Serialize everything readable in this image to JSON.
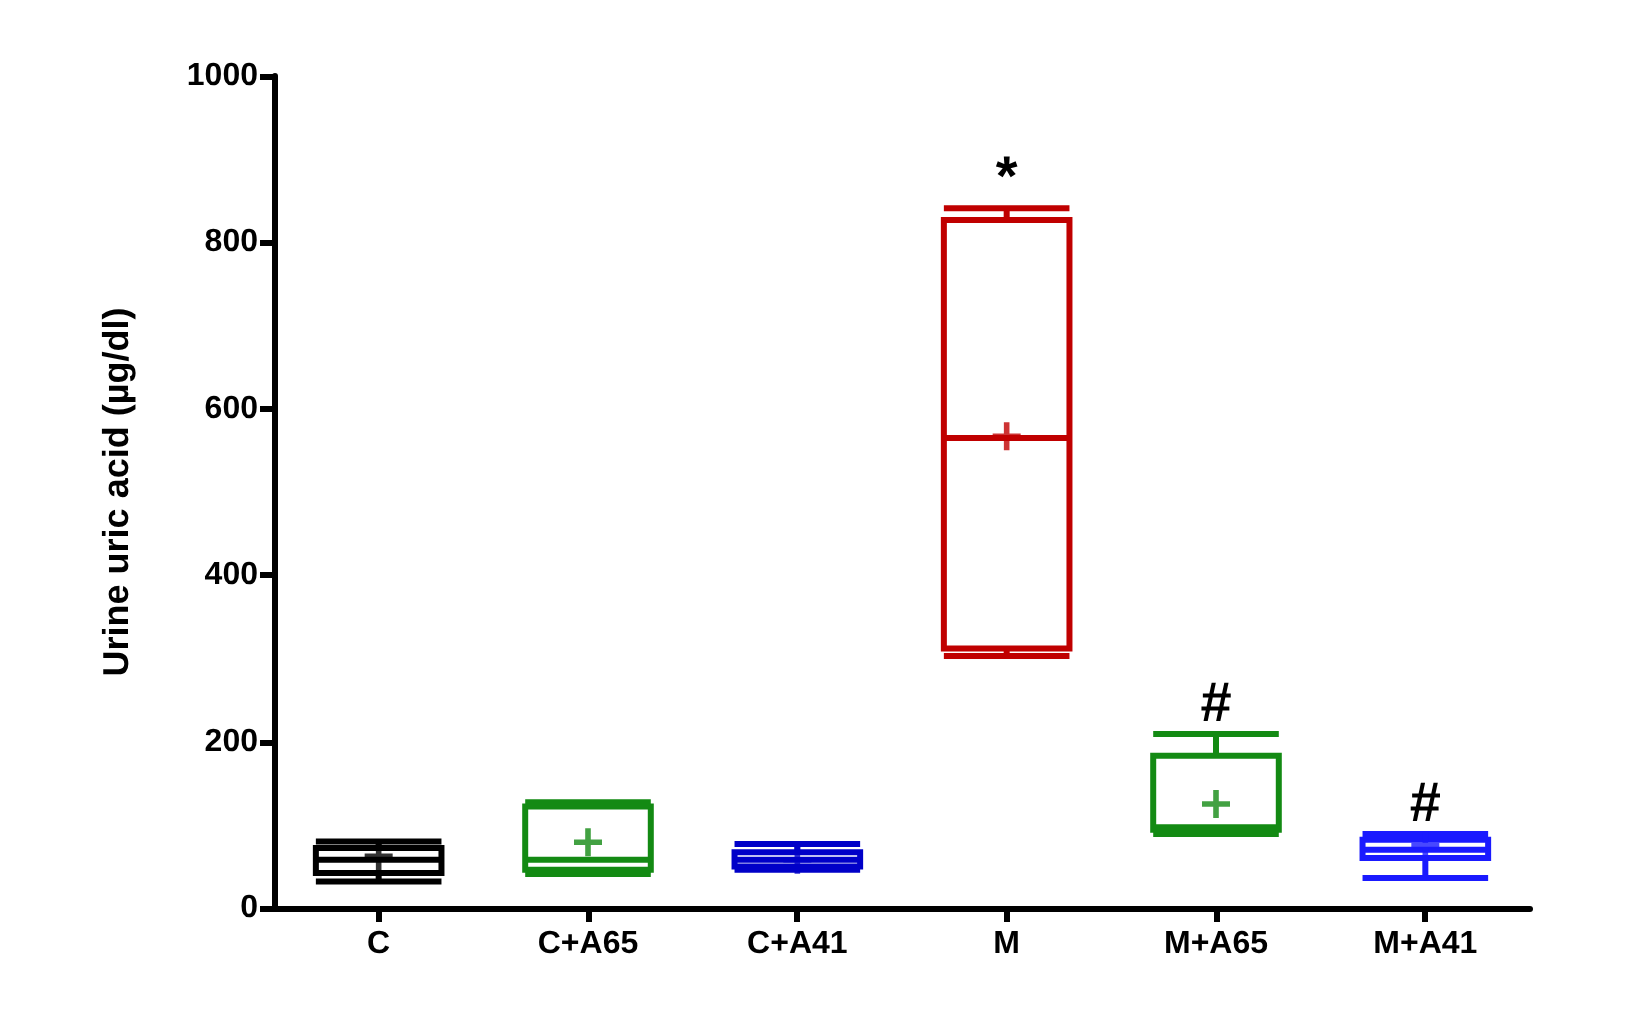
{
  "chart_data": {
    "type": "box",
    "ylabel": "Urine uric acid (µg/dl)",
    "categories": [
      "C",
      "C+A65",
      "C+A41",
      "M",
      "M+A65",
      "M+A41"
    ],
    "boxes": [
      {
        "low": 32,
        "q1": 42,
        "median": 58,
        "q3": 72,
        "high": 80,
        "mean": 62
      },
      {
        "low": 41,
        "q1": 46,
        "median": 58,
        "q3": 122,
        "high": 127,
        "mean": 79
      },
      {
        "low": 46,
        "q1": 50,
        "median": 58,
        "q3": 67,
        "high": 77,
        "mean": 58
      },
      {
        "low": 303,
        "q1": 312,
        "median": 565,
        "q3": 827,
        "high": 841,
        "mean": 567
      },
      {
        "low": 89,
        "q1": 94,
        "median": 97,
        "q3": 183,
        "high": 209,
        "mean": 125
      },
      {
        "low": 36,
        "q1": 60,
        "median": 70,
        "q3": 82,
        "high": 89,
        "mean": 75
      }
    ],
    "colors": [
      "#000000",
      "#138a13",
      "#0000c8",
      "#c00000",
      "#138a13",
      "#1a1aff"
    ],
    "ylim": [
      0,
      1000
    ],
    "yticks": [
      0,
      200,
      400,
      600,
      800,
      1000
    ],
    "grid": false,
    "annotations": [
      {
        "text": "*",
        "x": "M",
        "y": 841
      },
      {
        "text": "#",
        "x": "M+A65",
        "y": 209
      },
      {
        "text": "#",
        "x": "M+A41",
        "y": 89
      }
    ]
  }
}
